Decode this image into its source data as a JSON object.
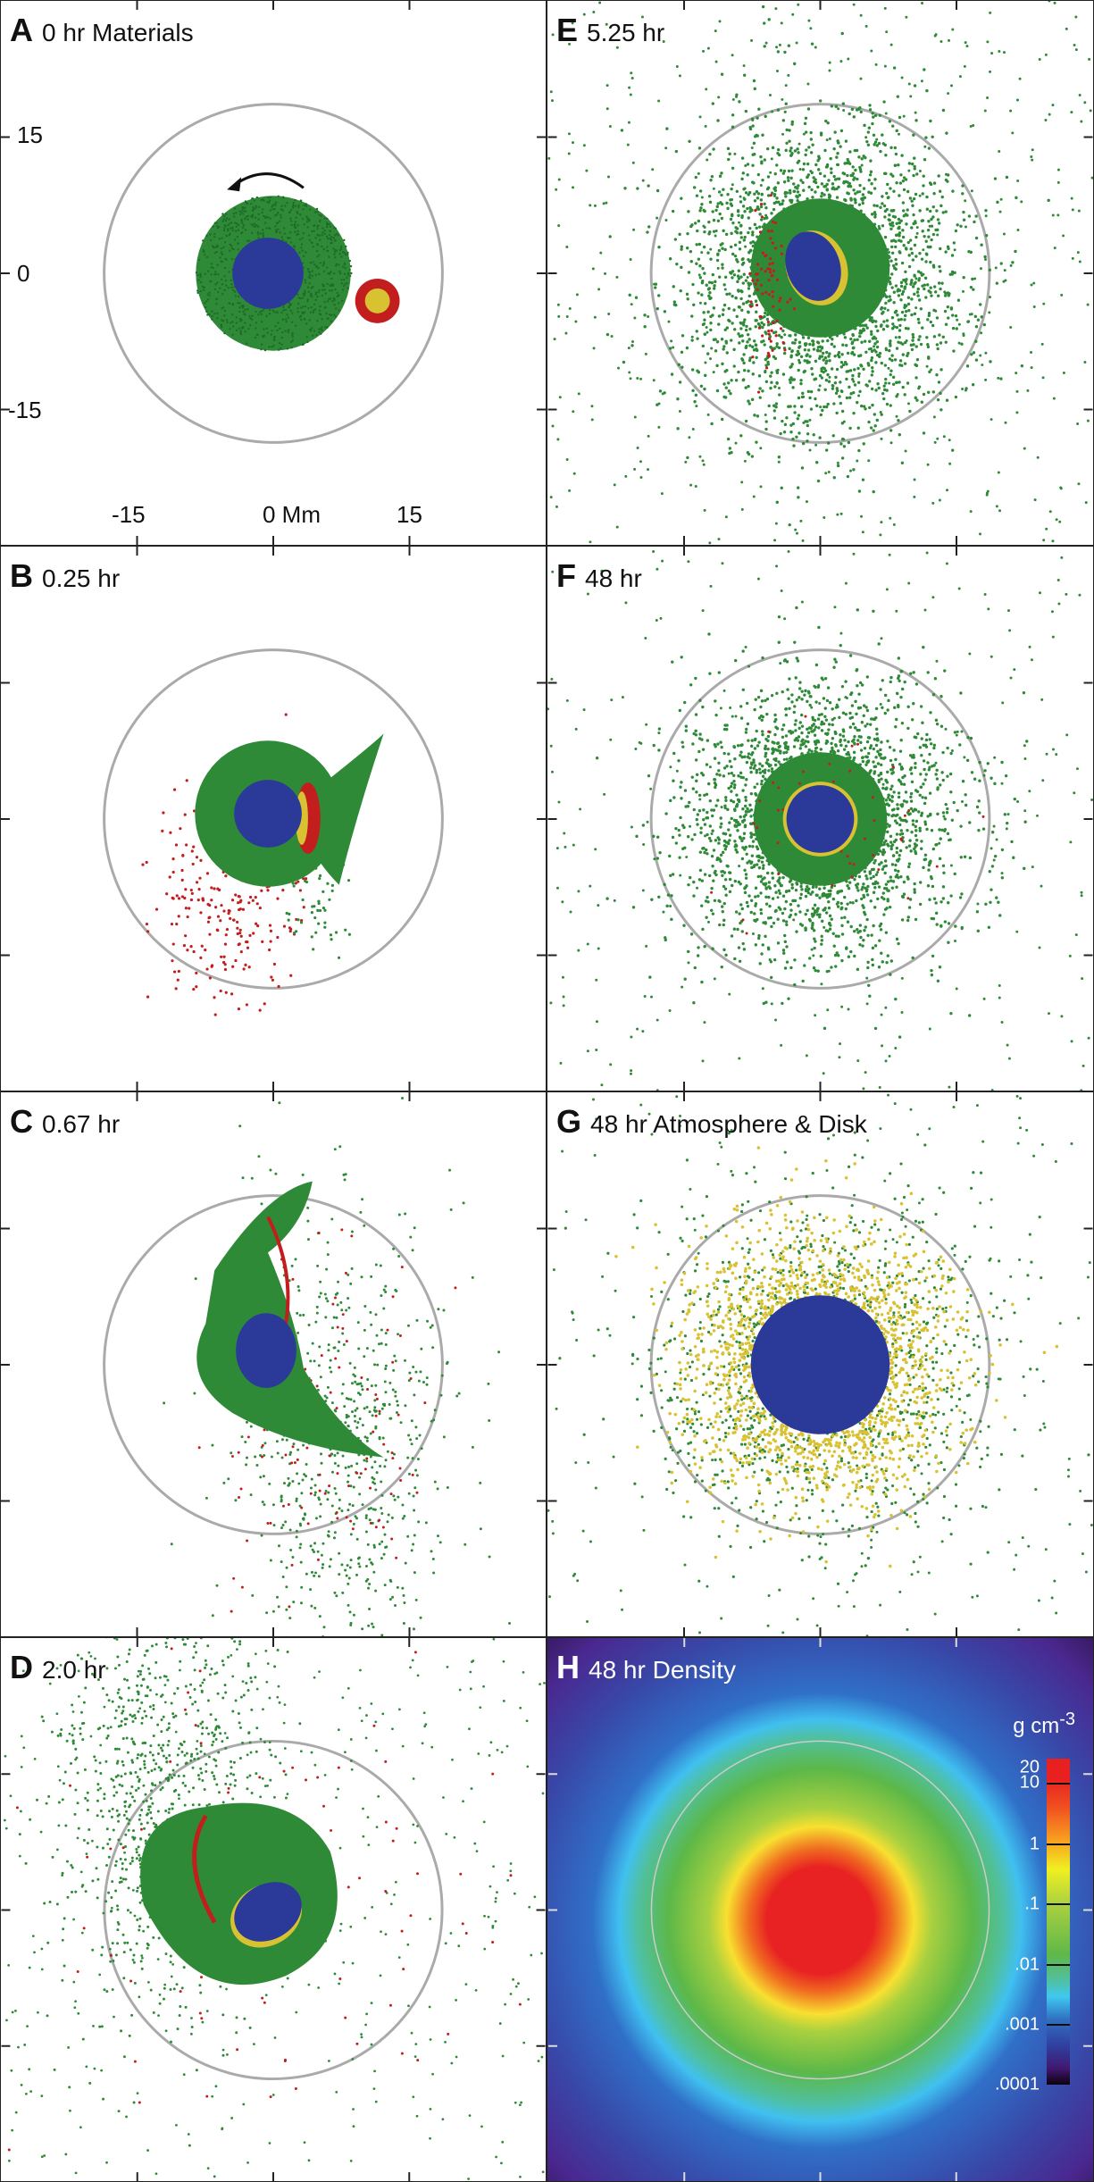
{
  "panels": [
    {
      "letter": "A",
      "title": "0 hr Materials"
    },
    {
      "letter": "E",
      "title": "5.25 hr"
    },
    {
      "letter": "B",
      "title": "0.25 hr"
    },
    {
      "letter": "F",
      "title": "48 hr"
    },
    {
      "letter": "C",
      "title": "0.67 hr"
    },
    {
      "letter": "G",
      "title": "48 hr Atmosphere & Disk"
    },
    {
      "letter": "D",
      "title": "2.0 hr"
    },
    {
      "letter": "H",
      "title": "48 hr Density"
    }
  ],
  "axis": {
    "y_ticks": [
      "15",
      "0",
      "-15"
    ],
    "x_ticks": [
      "-15",
      "0 Mm",
      "15"
    ]
  },
  "colorbar": {
    "unit": "g cm",
    "unit_exp": "-3",
    "labels": [
      "20",
      "10",
      "1",
      ".1",
      ".01",
      ".001",
      ".0001"
    ]
  },
  "colors": {
    "mantle": "#2f8a38",
    "core": "#2b3a98",
    "impactor_mantle": "#c21e1e",
    "impactor_core": "#d9c232",
    "roche": "#aaaaaa"
  }
}
